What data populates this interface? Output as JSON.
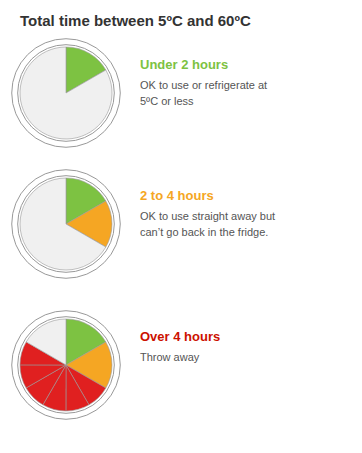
{
  "title": "Total time between 5ºC and 60ºC",
  "chart_data": [
    {
      "type": "pie",
      "title": "Under 2 hours",
      "subtitle": "OK to use or refrigerate at\n5ºC or less",
      "color": "#7dc242",
      "values": [
        16.67,
        83.33
      ],
      "colors": [
        "#7dc242",
        "#f0f0f0"
      ]
    },
    {
      "type": "pie",
      "title": "2 to 4 hours",
      "subtitle": "OK to use straight away but\ncan’t go back in the fridge.",
      "color": "#f5a623",
      "values": [
        16.67,
        16.67,
        66.66
      ],
      "colors": [
        "#7dc242",
        "#f5a623",
        "#f0f0f0"
      ]
    },
    {
      "type": "pie",
      "title": "Over 4 hours",
      "subtitle": "Throw away",
      "color": "#cc1100",
      "values": [
        16.67,
        16.67,
        8.34,
        8.34,
        8.34,
        8.34,
        8.34,
        8.34,
        16.62
      ],
      "colors": [
        "#7dc242",
        "#f5a623",
        "#e02020",
        "#e02020",
        "#e02020",
        "#e02020",
        "#e02020",
        "#e02020",
        "#f0f0f0"
      ]
    }
  ]
}
